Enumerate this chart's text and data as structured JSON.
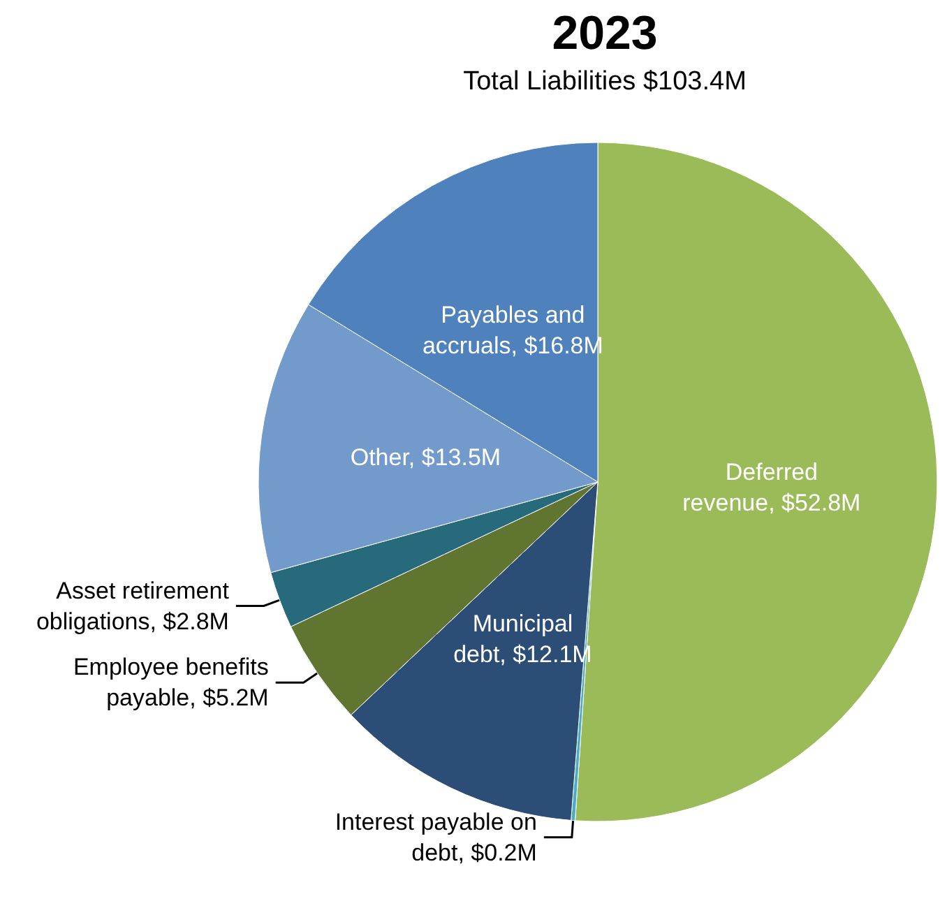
{
  "chart_data": {
    "type": "pie",
    "title": "2023",
    "subtitle": "Total Liabilities $103.4M",
    "categories": [
      "Deferred revenue",
      "Interest payable on debt",
      "Municipal debt",
      "Employee benefits payable",
      "Asset retirement obligations",
      "Other",
      "Payables and accruals"
    ],
    "values": [
      52.8,
      0.2,
      12.1,
      5.2,
      2.8,
      13.5,
      16.8
    ],
    "value_labels": [
      "$52.8M",
      "$0.2M",
      "$12.1M",
      "$5.2M",
      "$2.8M",
      "$13.5M",
      "$16.8M"
    ],
    "colors": [
      "#9bbb59",
      "#4bacc6",
      "#2c4d75",
      "#5f7530",
      "#276a7c",
      "#729aca",
      "#4f81bd"
    ],
    "legend": false
  }
}
